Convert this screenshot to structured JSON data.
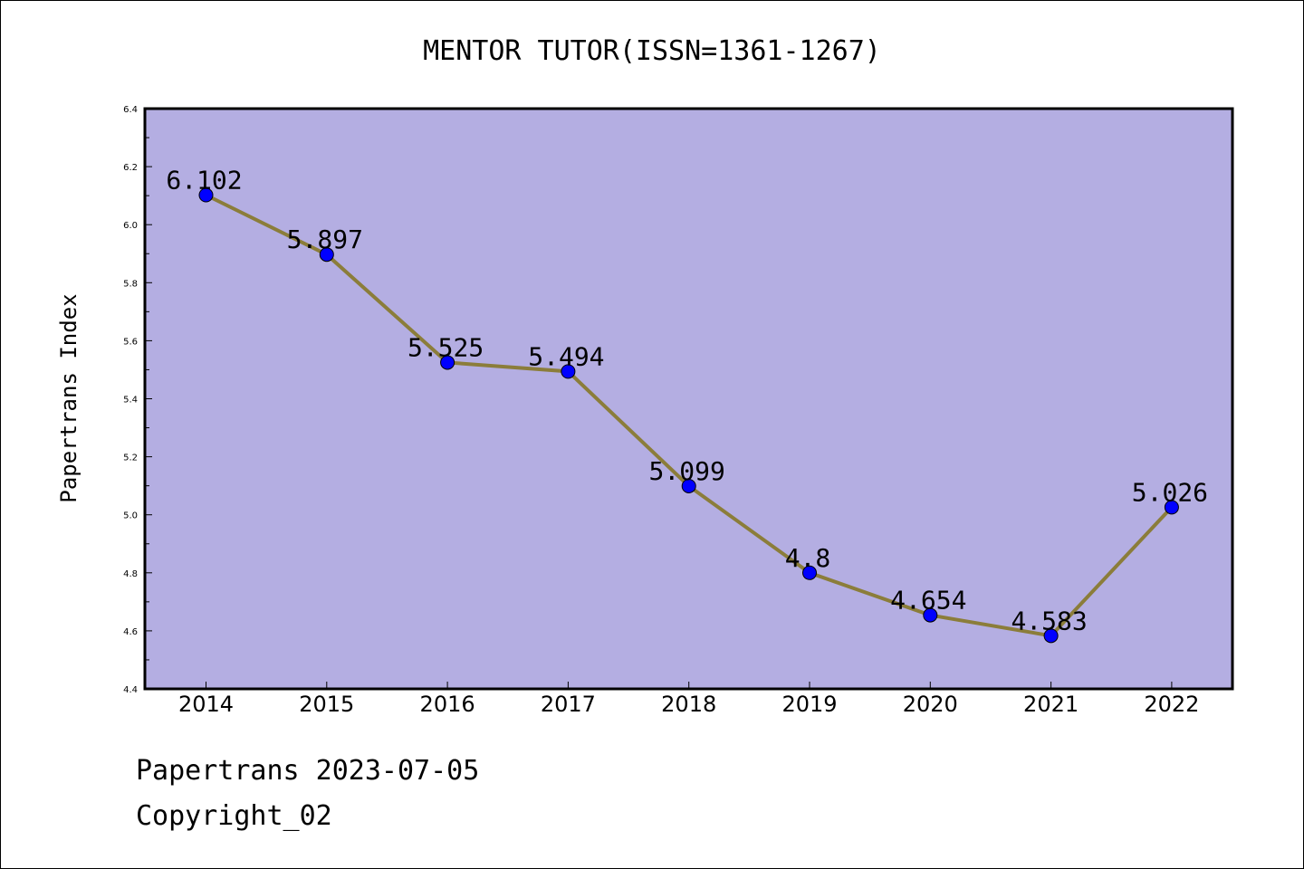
{
  "chart_data": {
    "type": "line",
    "title": "MENTOR TUTOR(ISSN=1361-1267)",
    "xlabel": "",
    "ylabel": "Papertrans Index",
    "categories": [
      "2014",
      "2015",
      "2016",
      "2017",
      "2018",
      "2019",
      "2020",
      "2021",
      "2022"
    ],
    "values": [
      6.102,
      5.897,
      5.525,
      5.494,
      5.099,
      4.8,
      4.654,
      4.583,
      5.026
    ],
    "data_labels": [
      "6.102",
      "5.897",
      "5.525",
      "5.494",
      "5.099",
      "4.8",
      "4.654",
      "4.583",
      "5.026"
    ],
    "yticks": [
      "4.4",
      "4.6",
      "4.8",
      "5.0",
      "5.2",
      "5.4",
      "5.6",
      "5.8",
      "6.0",
      "6.2",
      "6.4"
    ],
    "ylim": [
      4.4,
      6.4
    ],
    "grid": false,
    "colors": {
      "plot_background": "#b4aee2",
      "line": "#8b7d3a",
      "marker": "#0000ff"
    }
  },
  "footer": {
    "source": "Papertrans 2023-07-05",
    "copyright": "Copyright_02"
  }
}
